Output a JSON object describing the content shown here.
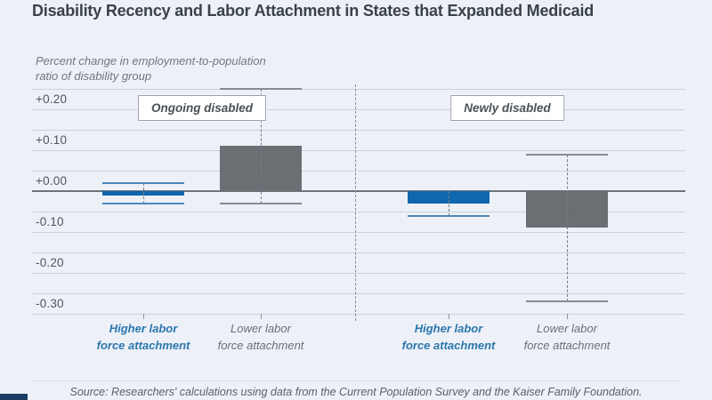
{
  "header": {
    "title": "Disability Recency and Labor Attachment in States that Expanded Medicaid"
  },
  "chart_data": {
    "type": "bar",
    "title": "Disability Recency and Labor Attachment in States that Expanded Medicaid",
    "y_axis_label": "Percent change in employment-to-population\nratio of disability group",
    "ylim": [
      -0.3,
      0.25
    ],
    "gridline_step": 0.05,
    "grid": true,
    "y_ticks": [
      {
        "label": "+0.20",
        "value": 0.2
      },
      {
        "label": "+0.10",
        "value": 0.1
      },
      {
        "label": "+0.00",
        "value": 0.0
      },
      {
        "label": "-0.10",
        "value": -0.1
      },
      {
        "label": "-0.20",
        "value": -0.2
      },
      {
        "label": "-0.30",
        "value": -0.3
      }
    ],
    "groups": [
      {
        "label": "Ongoing disabled",
        "bars": [
          {
            "category": "Higher labor\nforce attachment",
            "value": -0.01,
            "ci_high": 0.02,
            "ci_low": -0.03,
            "color": "blue"
          },
          {
            "category": "Lower labor\nforce attachment",
            "value": 0.11,
            "ci_high": 0.25,
            "ci_low": -0.03,
            "color": "gray"
          }
        ]
      },
      {
        "label": "Newly disabled",
        "bars": [
          {
            "category": "Higher labor\nforce attachment",
            "value": -0.03,
            "ci_high": 0.0,
            "ci_low": -0.06,
            "color": "blue"
          },
          {
            "category": "Lower labor\nforce attachment",
            "value": -0.09,
            "ci_high": 0.09,
            "ci_low": -0.27,
            "color": "gray"
          }
        ]
      }
    ],
    "colors": {
      "bar_blue": "#0f67ad",
      "bar_gray": "#6b6e73",
      "cap_blue": "#4e87b6",
      "cap_gray": "#888c92",
      "label_blue": "#2b76ad",
      "label_gray": "#6a7077",
      "accent_navy": "#1c3e66"
    }
  },
  "footer": {
    "source": "Source: Researchers' calculations using data from the Current Population Survey and the Kaiser Family Foundation."
  }
}
